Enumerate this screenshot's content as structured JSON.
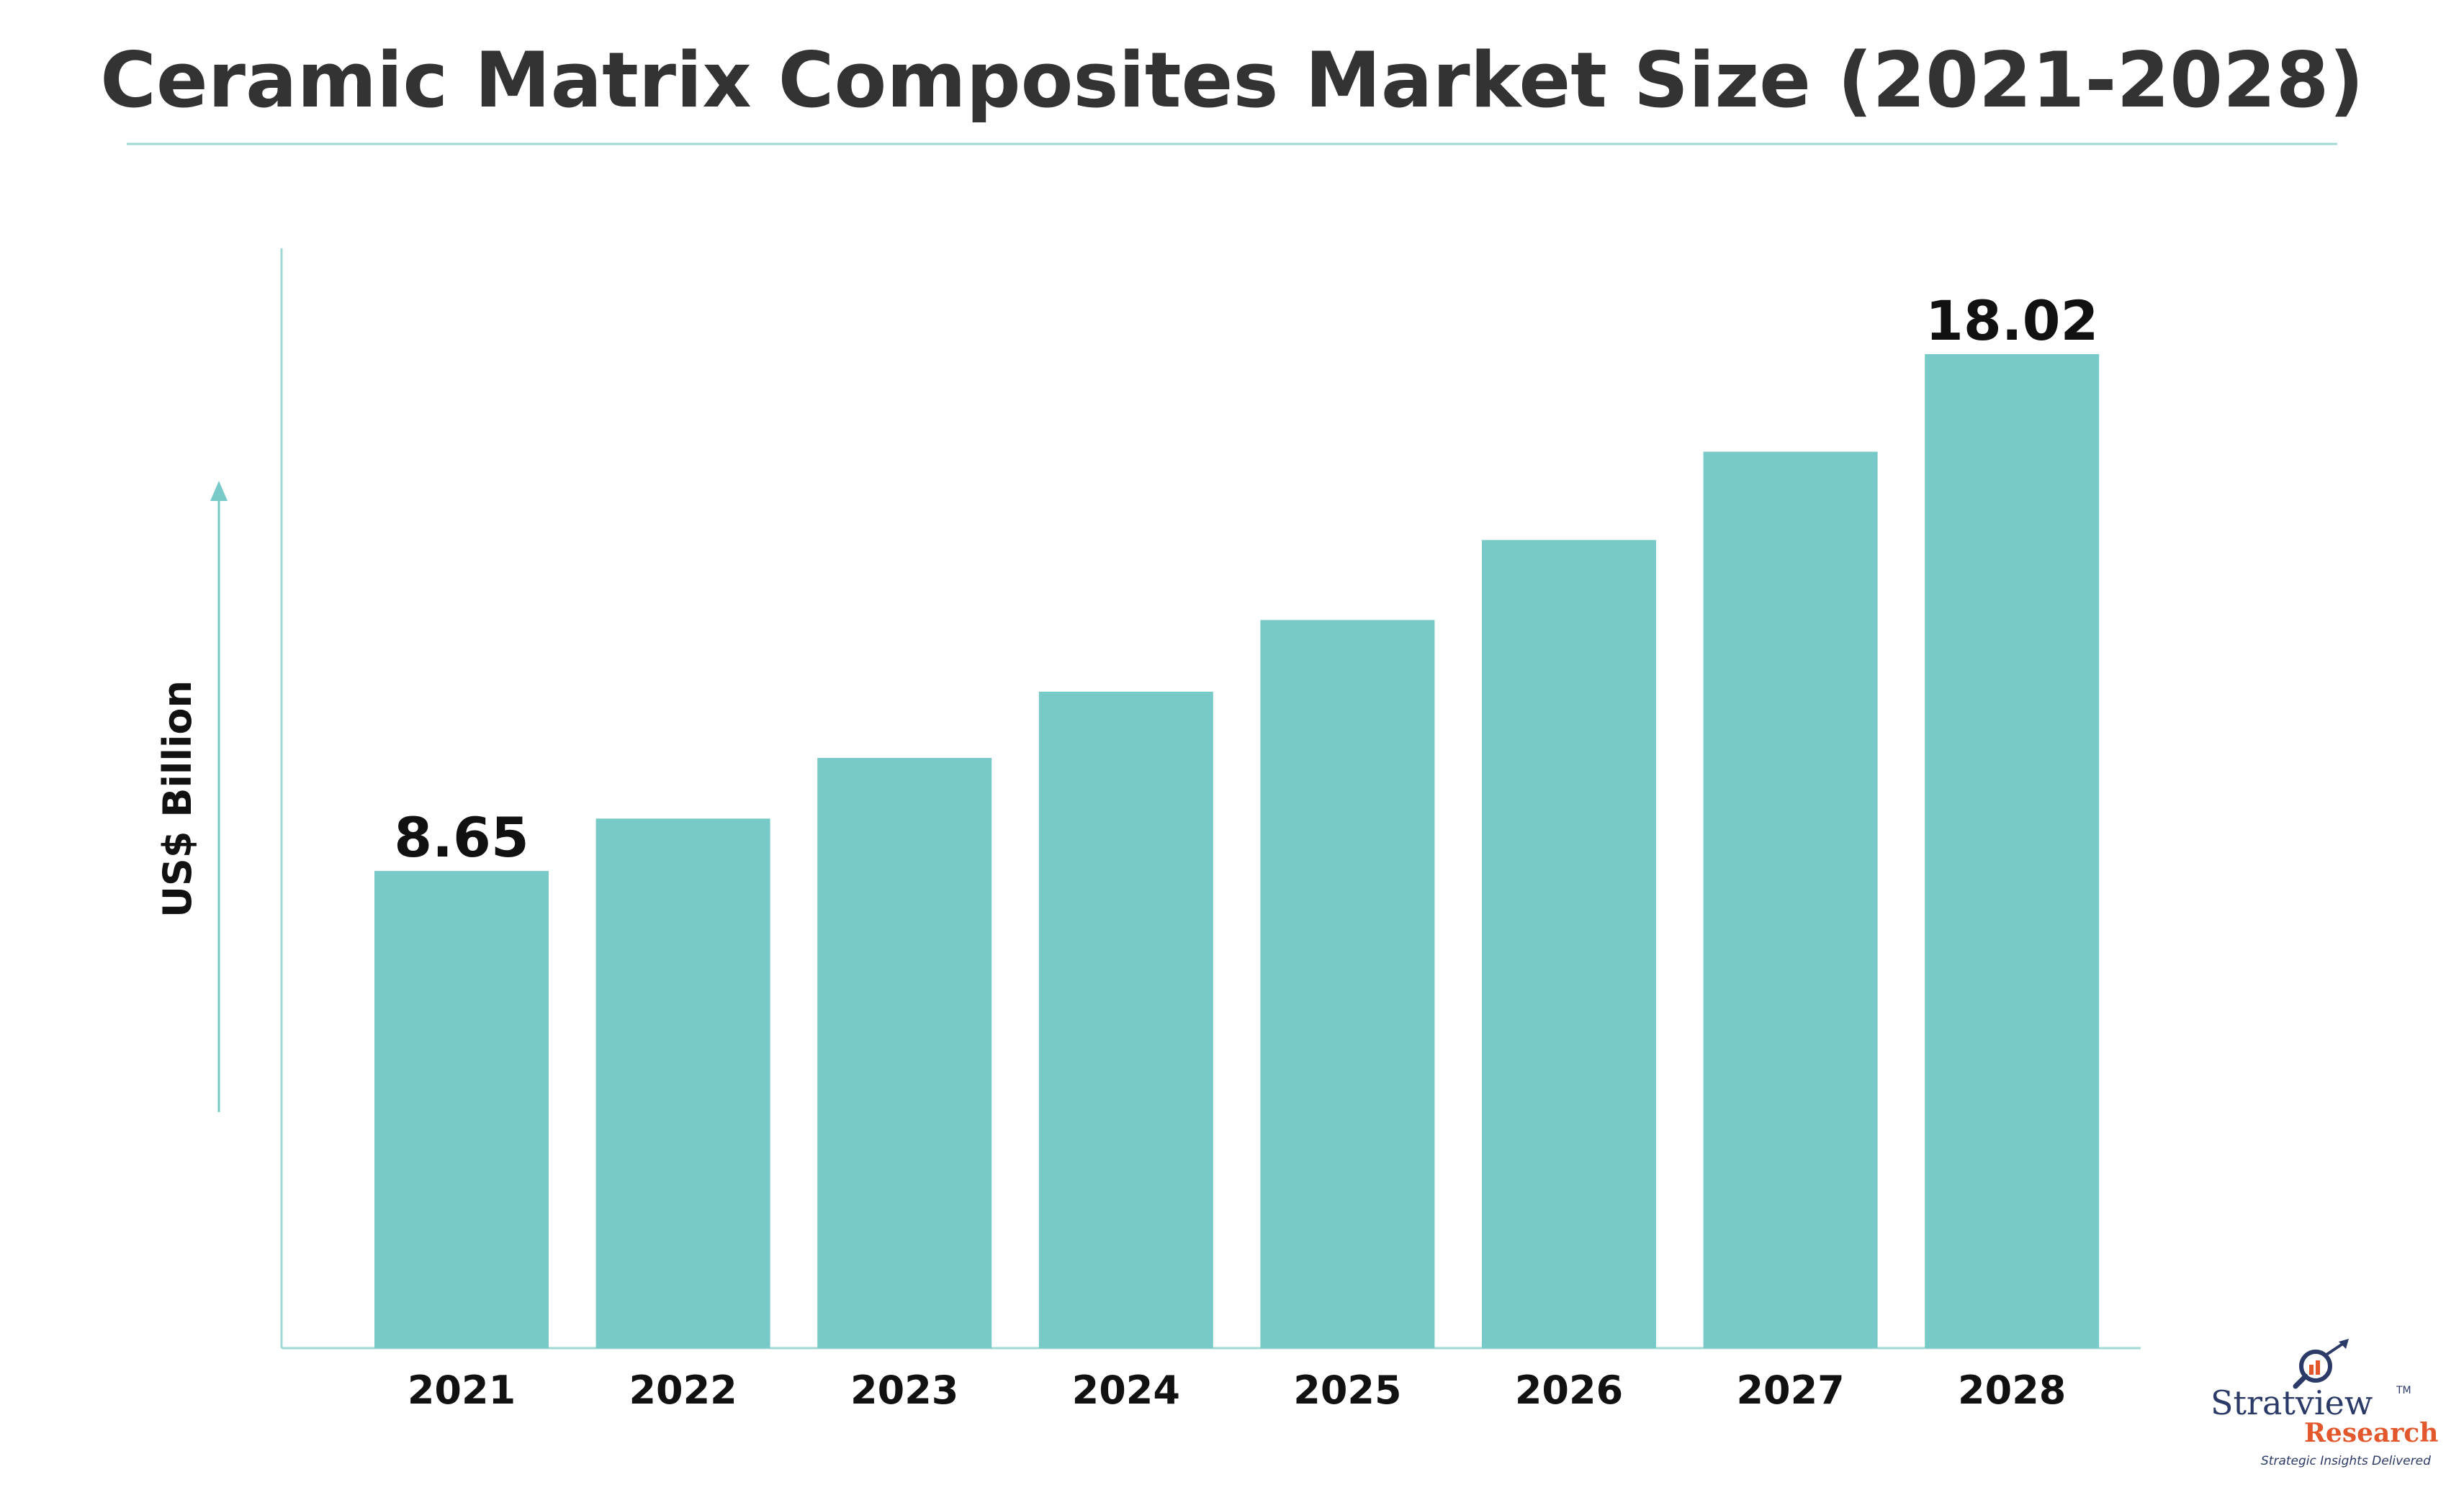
{
  "chart_data": {
    "type": "bar",
    "title": "Ceramic Matrix Composites Market Size (2021-2028)",
    "ylabel": "US$ Billion",
    "xlabel": "",
    "categories": [
      "2021",
      "2022",
      "2023",
      "2024",
      "2025",
      "2026",
      "2027",
      "2028"
    ],
    "values": [
      8.65,
      9.6,
      10.7,
      11.9,
      13.2,
      14.65,
      16.25,
      18.02
    ],
    "data_labels": [
      "8.65",
      "",
      "",
      "",
      "",
      "",
      "",
      "18.02"
    ],
    "ylim": [
      0,
      20
    ],
    "grid": false,
    "legend": "none",
    "colors": {
      "bar": "#78CAC8",
      "axis": "#9fd8d6",
      "title_rule": "#9fd8d6",
      "text": "#111111",
      "title": "#333333"
    }
  },
  "logo": {
    "brand": "Stratview",
    "brand_suffix": "Research",
    "tagline": "Strategic Insights Delivered",
    "trademark": "TM",
    "icon": "magnifier-chart-icon"
  }
}
